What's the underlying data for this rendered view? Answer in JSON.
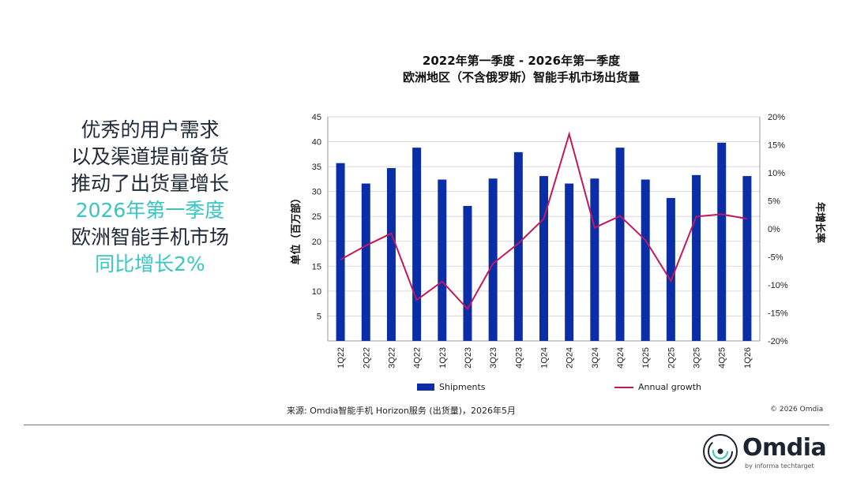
{
  "left_text": {
    "line1": "优秀的用户需求",
    "line2": "以及渠道提前备货",
    "line3": "推动了出货量增长",
    "line4": "2026年第一季度",
    "line5": "欧洲智能手机市场",
    "line6": "同比增长2%"
  },
  "colors": {
    "bar": "#0b2ea7",
    "line": "#c2185b",
    "accent_teal": "#38c6c2",
    "grid": "#d9d9d9"
  },
  "chart_data": {
    "type": "bar",
    "title": "2022年第一季度 - 2026年第一季度",
    "subtitle": "欧洲地区（不含俄罗斯）智能手机市场出货量",
    "categories": [
      "1Q22",
      "2Q22",
      "3Q22",
      "4Q22",
      "1Q23",
      "2Q23",
      "3Q23",
      "4Q23",
      "1Q24",
      "2Q24",
      "3Q24",
      "4Q24",
      "1Q25",
      "2Q25",
      "3Q25",
      "4Q25",
      "1Q26"
    ],
    "series": [
      {
        "name": "Shipments",
        "type": "bar",
        "axis": "left",
        "values": [
          35.7,
          31.6,
          34.7,
          38.8,
          32.4,
          27.1,
          32.6,
          37.9,
          33.1,
          31.6,
          32.6,
          38.8,
          32.4,
          28.7,
          33.3,
          39.8,
          33.1
        ]
      },
      {
        "name": "Annual growth",
        "type": "line",
        "axis": "right",
        "values": [
          -5.5,
          -3.0,
          -0.8,
          -12.7,
          -9.4,
          -14.3,
          -6.2,
          -2.6,
          1.8,
          16.9,
          0.2,
          2.3,
          -2.0,
          -9.3,
          2.2,
          2.6,
          1.8
        ]
      }
    ],
    "ylabel": "单位（百万部）",
    "y2label": "年增长率",
    "ylim": [
      0,
      45
    ],
    "y2lim": [
      -20,
      20
    ],
    "yticks": [
      "5",
      "10",
      "15",
      "20",
      "25",
      "30",
      "35",
      "40",
      "45"
    ],
    "y2ticks": [
      "-20%",
      "-15%",
      "-10%",
      "-5%",
      "0%",
      "5%",
      "10%",
      "15%",
      "20%"
    ],
    "grid": true,
    "legend_position": "bottom"
  },
  "legend": {
    "shipments": "Shipments",
    "growth": "Annual growth"
  },
  "source": "来源: Omdia智能手机 Horizon服务 (出货量)，2026年5月",
  "copyright": "© 2026 Omdia",
  "logo": {
    "word": "Omdia",
    "sub": "by informa techtarget"
  }
}
